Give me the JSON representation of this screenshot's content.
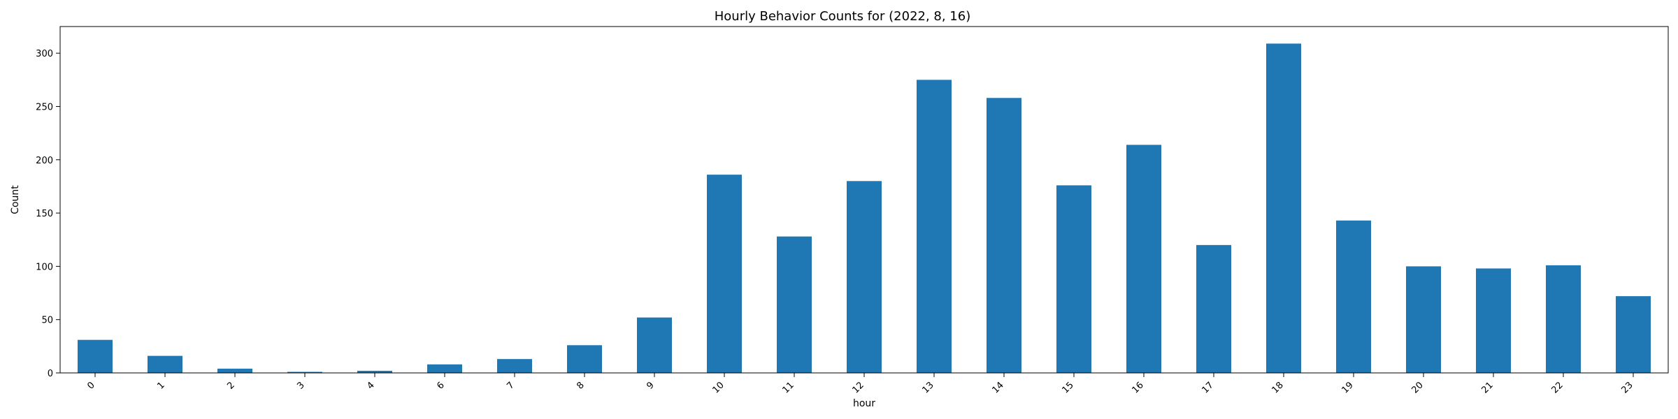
{
  "chart_data": {
    "type": "bar",
    "title": "Hourly Behavior Counts for (2022, 8, 16)",
    "xlabel": "hour",
    "ylabel": "Count",
    "categories": [
      "0",
      "1",
      "2",
      "3",
      "4",
      "6",
      "7",
      "8",
      "9",
      "10",
      "11",
      "12",
      "13",
      "14",
      "15",
      "16",
      "17",
      "18",
      "19",
      "20",
      "21",
      "22",
      "23"
    ],
    "values": [
      31,
      16,
      4,
      1,
      2,
      8,
      13,
      26,
      52,
      186,
      128,
      180,
      275,
      258,
      176,
      214,
      120,
      309,
      143,
      100,
      98,
      101,
      72
    ],
    "ylim": [
      0,
      325
    ],
    "yticks": [
      0,
      50,
      100,
      150,
      200,
      250,
      300
    ],
    "grid": false,
    "legend": "none",
    "bar_color": "#1f77b4"
  }
}
